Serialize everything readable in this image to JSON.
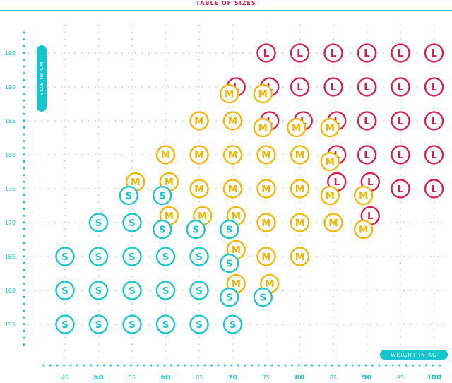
{
  "title": "TABLE OF SIZES",
  "colors": {
    "S": "#14c7cf",
    "M": "#f7b500",
    "L": "#e0194c",
    "axis": "#14c7cf",
    "grid": "#d9d9d9"
  },
  "chart_data": {
    "type": "scatter",
    "title": "TABLE OF SIZES",
    "xlabel": "WEIGHT IN KG",
    "ylabel": "SIZE IN CM",
    "xlim": [
      40,
      102
    ],
    "ylim": [
      151,
      199
    ],
    "x_ticks": [
      45,
      50,
      55,
      60,
      65,
      70,
      75,
      80,
      85,
      90,
      95,
      100
    ],
    "y_ticks": [
      155,
      160,
      165,
      170,
      175,
      180,
      185,
      190,
      195
    ],
    "grid": true,
    "series": [
      {
        "name": "L",
        "values": [
          [
            75,
            195
          ],
          [
            80,
            195
          ],
          [
            85,
            195
          ],
          [
            90,
            195
          ],
          [
            95,
            195
          ],
          [
            100,
            195
          ],
          [
            70.5,
            190
          ],
          [
            75.5,
            190
          ],
          [
            80,
            190
          ],
          [
            85,
            190
          ],
          [
            90,
            190
          ],
          [
            95,
            190
          ],
          [
            100,
            190
          ],
          [
            75.5,
            185
          ],
          [
            80.5,
            185
          ],
          [
            85.5,
            185
          ],
          [
            90,
            185
          ],
          [
            95,
            185
          ],
          [
            100,
            185
          ],
          [
            85.5,
            180
          ],
          [
            90,
            180
          ],
          [
            95,
            180
          ],
          [
            100,
            180
          ],
          [
            85.5,
            176
          ],
          [
            90.5,
            176
          ],
          [
            95,
            175
          ],
          [
            100,
            175
          ],
          [
            90.5,
            171
          ]
        ]
      },
      {
        "name": "M",
        "values": [
          [
            69.5,
            189
          ],
          [
            74.5,
            189
          ],
          [
            65,
            185
          ],
          [
            70,
            185
          ],
          [
            74.5,
            184
          ],
          [
            79.5,
            184
          ],
          [
            84.5,
            184
          ],
          [
            60,
            180
          ],
          [
            65,
            180
          ],
          [
            70,
            180
          ],
          [
            75,
            180
          ],
          [
            80,
            180
          ],
          [
            84.5,
            179
          ],
          [
            55.5,
            176
          ],
          [
            60.5,
            176
          ],
          [
            65,
            175
          ],
          [
            70,
            175
          ],
          [
            75,
            175
          ],
          [
            80,
            175
          ],
          [
            84.5,
            174
          ],
          [
            89.5,
            174
          ],
          [
            60.5,
            171
          ],
          [
            65.5,
            171
          ],
          [
            70.5,
            171
          ],
          [
            75,
            170
          ],
          [
            80,
            170
          ],
          [
            85,
            170
          ],
          [
            89.5,
            169
          ],
          [
            70.5,
            166
          ],
          [
            75,
            165
          ],
          [
            80,
            165
          ],
          [
            70.5,
            161
          ],
          [
            75.5,
            161
          ]
        ]
      },
      {
        "name": "S",
        "values": [
          [
            54.5,
            174
          ],
          [
            59.5,
            174
          ],
          [
            50,
            170
          ],
          [
            55,
            170
          ],
          [
            59.5,
            169
          ],
          [
            64.5,
            169
          ],
          [
            69.5,
            169
          ],
          [
            45,
            165
          ],
          [
            50,
            165
          ],
          [
            55,
            165
          ],
          [
            60,
            165
          ],
          [
            65,
            165
          ],
          [
            69.5,
            164
          ],
          [
            45,
            160
          ],
          [
            50,
            160
          ],
          [
            55,
            160
          ],
          [
            60,
            160
          ],
          [
            65,
            160
          ],
          [
            69.5,
            159
          ],
          [
            74.5,
            159
          ],
          [
            45,
            155
          ],
          [
            50,
            155
          ],
          [
            55,
            155
          ],
          [
            60,
            155
          ],
          [
            65,
            155
          ],
          [
            70,
            155
          ]
        ]
      }
    ]
  }
}
